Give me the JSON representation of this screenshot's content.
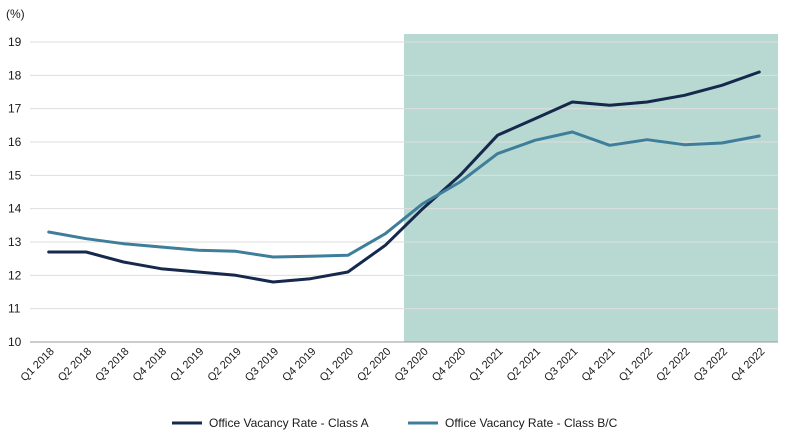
{
  "chart_data": {
    "type": "line",
    "unit_label": "(%)",
    "categories": [
      "Q1 2018",
      "Q2 2018",
      "Q3 2018",
      "Q4 2018",
      "Q1 2019",
      "Q2 2019",
      "Q3 2019",
      "Q4 2019",
      "Q1 2020",
      "Q2 2020",
      "Q3 2020",
      "Q4 2020",
      "Q1 2021",
      "Q2 2021",
      "Q3 2021",
      "Q4 2021",
      "Q1 2022",
      "Q2 2022",
      "Q3 2022",
      "Q4 2022"
    ],
    "ylim": [
      10,
      19
    ],
    "yticks": [
      10,
      11,
      12,
      13,
      14,
      15,
      16,
      17,
      18,
      19
    ],
    "grid": true,
    "shaded_region": {
      "from": "Q3 2020",
      "to": "Q4 2022",
      "color": "#b8d9d2"
    },
    "legend_position": "bottom",
    "series": [
      {
        "name": "Office Vacancy Rate - Class A",
        "color": "#16294d",
        "values": [
          12.7,
          12.7,
          12.4,
          12.2,
          12.1,
          12.0,
          11.8,
          11.9,
          12.1,
          12.9,
          14.0,
          15.0,
          16.2,
          16.7,
          17.2,
          17.1,
          17.2,
          17.4,
          17.7,
          18.1
        ]
      },
      {
        "name": "Office Vacancy Rate - Class B/C",
        "color": "#3e7e9b",
        "values": [
          13.3,
          13.1,
          12.95,
          12.85,
          12.75,
          12.72,
          12.55,
          12.57,
          12.6,
          13.25,
          14.15,
          14.8,
          15.65,
          16.05,
          16.3,
          15.9,
          16.07,
          15.92,
          15.97,
          16.18
        ]
      }
    ]
  }
}
